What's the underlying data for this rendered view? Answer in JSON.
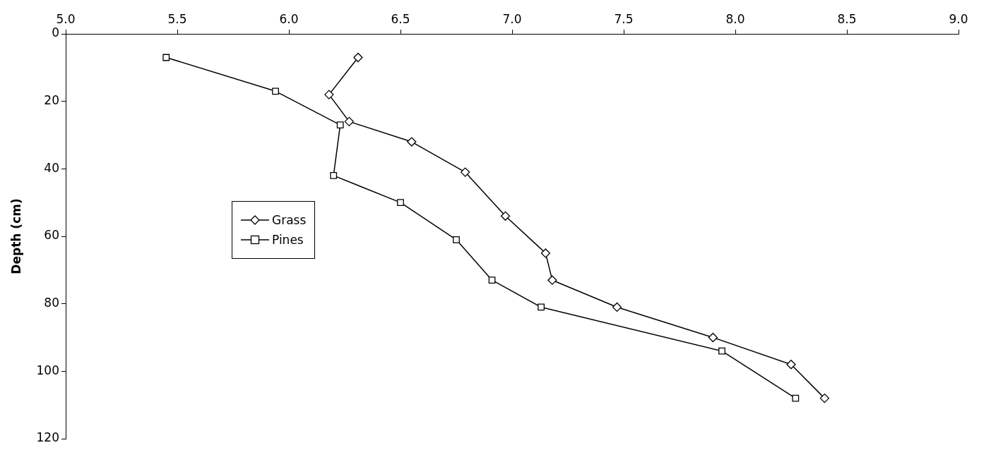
{
  "chart_data": {
    "type": "line",
    "ylabel": "Depth (cm)",
    "xlim": [
      5.0,
      9.0
    ],
    "xticks": [
      {
        "value": 5,
        "label": "5.0"
      },
      {
        "value": 5.5,
        "label": "5.5"
      },
      {
        "value": 6,
        "label": "6.0"
      },
      {
        "value": 6.5,
        "label": "6.5"
      },
      {
        "value": 7,
        "label": "7.0"
      },
      {
        "value": 7.5,
        "label": "7.5"
      },
      {
        "value": 8,
        "label": "8.0"
      },
      {
        "value": 8.5,
        "label": "8.5"
      },
      {
        "value": 9,
        "label": "9.0"
      }
    ],
    "ylim": [
      120,
      0
    ],
    "yticks": [
      0,
      20,
      40,
      60,
      80,
      100,
      120
    ],
    "grid": false,
    "legend": "left",
    "line_style": "solid",
    "series": [
      {
        "name": "Grass",
        "color": "#000000",
        "marker": "diamond",
        "x": [
          6.31,
          6.18,
          6.27,
          6.55,
          6.79,
          6.97,
          7.15,
          7.18,
          7.47,
          7.9,
          8.25,
          8.4
        ],
        "values": [
          7,
          18,
          26,
          32,
          41,
          54,
          65,
          73,
          81,
          90,
          98,
          108
        ]
      },
      {
        "name": "Pines",
        "color": "#000000",
        "marker": "square",
        "x": [
          5.45,
          5.94,
          6.23,
          6.2,
          6.5,
          6.75,
          6.91,
          7.13,
          7.94,
          8.27
        ],
        "values": [
          7,
          17,
          27,
          42,
          50,
          61,
          73,
          81,
          94,
          108
        ]
      }
    ]
  }
}
